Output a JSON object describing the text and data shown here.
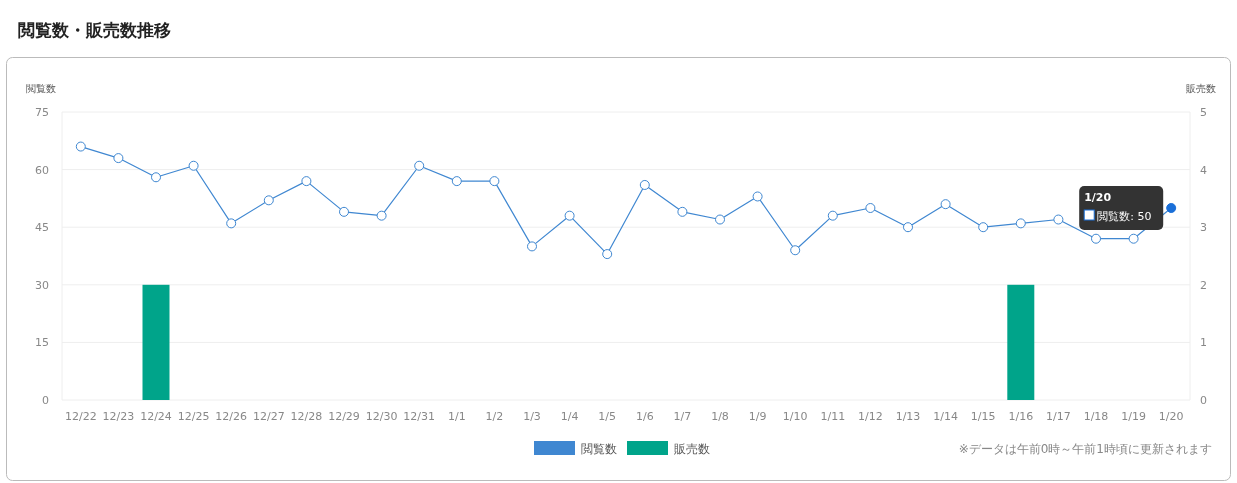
{
  "chart_data": {
    "type": "line",
    "title": "閲覧数・販売数推移",
    "ylabel": "閲覧数",
    "y2label": "販売数",
    "categories": [
      "12/22",
      "12/23",
      "12/24",
      "12/25",
      "12/26",
      "12/27",
      "12/28",
      "12/29",
      "12/30",
      "12/31",
      "1/1",
      "1/2",
      "1/3",
      "1/4",
      "1/5",
      "1/6",
      "1/7",
      "1/8",
      "1/9",
      "1/10",
      "1/11",
      "1/12",
      "1/13",
      "1/14",
      "1/15",
      "1/16",
      "1/17",
      "1/18",
      "1/19",
      "1/20"
    ],
    "series": [
      {
        "name": "閲覧数",
        "color": "#3f87d1",
        "values": [
          66,
          63,
          58,
          61,
          46,
          52,
          57,
          49,
          48,
          61,
          57,
          57,
          40,
          48,
          38,
          56,
          49,
          47,
          53,
          39,
          48,
          50,
          45,
          51,
          45,
          46,
          47,
          42,
          42,
          50
        ]
      },
      {
        "name": "販売数",
        "type": "bar",
        "axis": "y2",
        "color": "#00a48a",
        "values": [
          0,
          0,
          2,
          0,
          0,
          0,
          0,
          0,
          0,
          0,
          0,
          0,
          0,
          0,
          0,
          0,
          0,
          0,
          0,
          0,
          0,
          0,
          0,
          0,
          0,
          2,
          0,
          0,
          0,
          0
        ]
      }
    ],
    "ylim": [
      0,
      75
    ],
    "yticks": [
      0,
      15,
      30,
      45,
      60,
      75
    ],
    "y2lim": [
      0,
      5
    ],
    "y2ticks": [
      0,
      1,
      2,
      3,
      4,
      5
    ],
    "grid": "y",
    "legend": "bottom",
    "marker": "circle",
    "annotations": [
      "1/20",
      {
        "text": "閲覧数: 50",
        "x": "1/20",
        "y": 50
      },
      "※データは午前0時～午前1時頃に更新されます"
    ]
  }
}
